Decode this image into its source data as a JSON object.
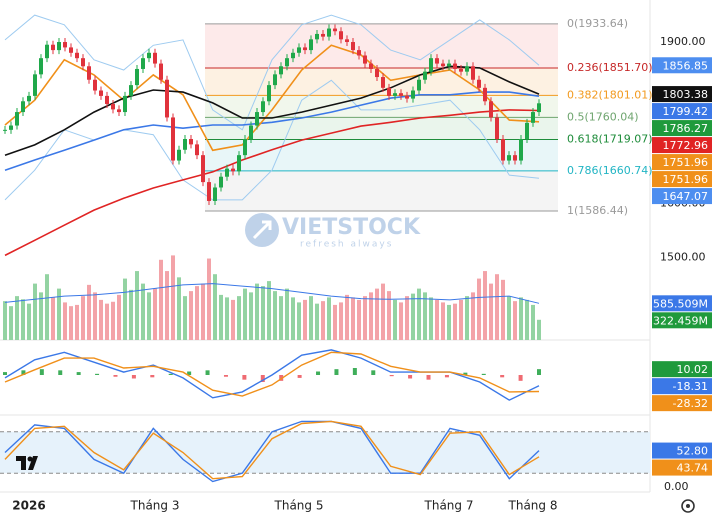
{
  "chart_data": {
    "type": "candlestick",
    "categories": [
      null,
      null,
      null,
      null,
      "2026",
      null,
      null,
      null,
      null,
      null,
      null,
      null,
      null,
      null,
      null,
      null,
      null,
      null,
      null,
      null,
      null,
      null,
      null,
      null,
      null,
      "Tháng 3",
      null,
      null,
      null,
      null,
      null,
      null,
      null,
      null,
      null,
      null,
      null,
      null,
      null,
      null,
      null,
      null,
      null,
      null,
      null,
      null,
      null,
      null,
      null,
      "Tháng 5",
      null,
      null,
      null,
      null,
      null,
      null,
      null,
      null,
      null,
      null,
      null,
      null,
      null,
      null,
      null,
      null,
      null,
      null,
      null,
      null,
      null,
      null,
      null,
      null,
      "Tháng 7",
      null,
      null,
      null,
      null,
      null,
      null,
      null,
      null,
      null,
      null,
      null,
      null,
      null,
      "Tháng 8",
      null
    ],
    "close": [
      1737,
      1745,
      1770,
      1790,
      1800,
      1840,
      1870,
      1895,
      1885,
      1900,
      1890,
      1880,
      1870,
      1855,
      1830,
      1810,
      1800,
      1785,
      1775,
      1770,
      1800,
      1820,
      1850,
      1870,
      1880,
      1860,
      1830,
      1760,
      1680,
      1700,
      1720,
      1710,
      1690,
      1640,
      1605,
      1630,
      1650,
      1665,
      1660,
      1690,
      1720,
      1745,
      1770,
      1790,
      1820,
      1840,
      1855,
      1870,
      1880,
      1890,
      1885,
      1905,
      1915,
      1910,
      1925,
      1920,
      1905,
      1900,
      1885,
      1875,
      1860,
      1850,
      1835,
      1815,
      1800,
      1805,
      1800,
      1795,
      1810,
      1830,
      1845,
      1870,
      1860,
      1855,
      1860,
      1850,
      1845,
      1855,
      1830,
      1815,
      1790,
      1760,
      1720,
      1680,
      1690,
      1680,
      1720,
      1750,
      1770,
      1786.27
    ],
    "up_color": "#1fa84a",
    "down_color": "#e0323c",
    "ylim": [
      1449,
      1978
    ],
    "yticks": [
      {
        "value": 1500,
        "label": "1500.00"
      },
      {
        "value": 1600,
        "label": "1600.00"
      },
      {
        "value": 1900,
        "label": "1900.00"
      }
    ],
    "overlays": [
      {
        "color": "#9ecbf0",
        "values": [
          1904,
          1950,
          1932,
          1867,
          1848,
          1894,
          1904,
          1774,
          1737,
          1867,
          1932,
          1950,
          1932,
          1885,
          1867,
          1904,
          1941,
          1904,
          1856.85
        ]
      },
      {
        "color": "#9ecbf0",
        "values": [
          1607,
          1662,
          1737,
          1718,
          1737,
          1728,
          1644,
          1607,
          1607,
          1662,
          1792,
          1829,
          1774,
          1774,
          1783,
          1792,
          1737,
          1653,
          1647.07
        ]
      },
      {
        "color": "#e02424",
        "values": [
          1504,
          1532,
          1560,
          1588,
          1610,
          1629,
          1644,
          1659,
          1681,
          1700,
          1718,
          1731,
          1744,
          1751,
          1759,
          1764,
          1770,
          1774,
          1772.96
        ]
      },
      {
        "color": "#3b78e7",
        "values": [
          1662,
          1681,
          1699,
          1718,
          1737,
          1746,
          1740,
          1746,
          1746,
          1751,
          1759,
          1770,
          1783,
          1796,
          1802,
          1802,
          1807,
          1807,
          1799.42
        ]
      },
      {
        "color": "#f0901a",
        "values": [
          1746,
          1792,
          1867,
          1839,
          1792,
          1839,
          1802,
          1699,
          1709,
          1774,
          1848,
          1894,
          1876,
          1829,
          1839,
          1848,
          1811,
          1755,
          1751.96
        ]
      },
      {
        "color": "#111111",
        "values": [
          1690,
          1709,
          1737,
          1770,
          1796,
          1811,
          1807,
          1787,
          1759,
          1759,
          1770,
          1783,
          1796,
          1815,
          1839,
          1855,
          1852,
          1826,
          1803.38
        ]
      }
    ],
    "fibonacci": [
      {
        "value": 1933.64,
        "label": "0(1933.64)",
        "color": "#9a9a9a",
        "fill": "#fdeaea"
      },
      {
        "value": 1851.7,
        "label": "0.236(1851.70)",
        "color": "#c62828",
        "fill": "#fdf1e2"
      },
      {
        "value": 1801.01,
        "label": "0.382(1801.01)",
        "color": "#f29a1f",
        "fill": "#f1f7ec"
      },
      {
        "value": 1760.04,
        "label": "0.5(1760.04)",
        "color": "#6fa56f",
        "fill": "#eaf5ec"
      },
      {
        "value": 1719.07,
        "label": "0.618(1719.07)",
        "color": "#1e8c3a",
        "fill": "#e8f6f8"
      },
      {
        "value": 1660.74,
        "label": "0.786(1660.74)",
        "color": "#22b5c4",
        "fill": "#f4f4f4"
      },
      {
        "value": 1586.44,
        "label": "1(1586.44)",
        "color": "#9a9a9a",
        "fill": "#ffffff"
      }
    ],
    "price_tags": [
      {
        "value": 1856.85,
        "color": "#4d8ef0"
      },
      {
        "value": 1803.38,
        "color": "#111111"
      },
      {
        "value": 1799.42,
        "color": "#3b78e7"
      },
      {
        "value": 1786.27,
        "color": "#1f9a3c"
      },
      {
        "value": 1772.96,
        "color": "#e02424"
      },
      {
        "value": 1751.96,
        "color": "#f0901a"
      },
      {
        "value": 1751.96,
        "color": "#f0901a"
      },
      {
        "value": 1647.07,
        "color": "#4d8ef0"
      }
    ],
    "volume": {
      "values": [
        620,
        540,
        700,
        650,
        580,
        900,
        760,
        1050,
        680,
        820,
        600,
        540,
        560,
        700,
        880,
        760,
        640,
        580,
        610,
        720,
        980,
        800,
        1100,
        900,
        760,
        820,
        1280,
        1100,
        1350,
        1000,
        700,
        780,
        860,
        900,
        1300,
        1050,
        720,
        680,
        640,
        700,
        820,
        760,
        900,
        860,
        940,
        780,
        700,
        820,
        680,
        600,
        640,
        700,
        580,
        620,
        680,
        560,
        600,
        720,
        680,
        640,
        700,
        760,
        820,
        900,
        780,
        640,
        600,
        700,
        740,
        820,
        760,
        680,
        640,
        600,
        560,
        580,
        640,
        700,
        760,
        980,
        1100,
        900,
        1050,
        960,
        700,
        620,
        680,
        640,
        560,
        322.459
      ],
      "up_color": "#93d3a2",
      "down_color": "#f3a3a8",
      "ylim": [
        0,
        1500
      ],
      "ma": {
        "color": "#3b78e7",
        "values": [
          600,
          650,
          700,
          720,
          760,
          820,
          880,
          900,
          860,
          820,
          760,
          700,
          660,
          650,
          660,
          640,
          680,
          700,
          585.509
        ]
      },
      "tags": [
        {
          "value": 585.509,
          "label": "585.509M",
          "color": "#3b78e7"
        },
        {
          "value": 322.459,
          "label": "322.459M",
          "color": "#1f9a3c"
        }
      ]
    },
    "macd": {
      "ylim": [
        -60,
        60
      ],
      "macd": {
        "color": "#3b78e7",
        "values": [
          -5,
          26,
          39,
          22,
          5,
          17,
          -5,
          -39,
          -29,
          0,
          34,
          43,
          29,
          5,
          5,
          5,
          -12,
          -43,
          -18.31
        ]
      },
      "signal": {
        "color": "#f0901a",
        "values": [
          -12,
          9,
          29,
          29,
          12,
          15,
          5,
          -26,
          -36,
          -17,
          17,
          39,
          36,
          15,
          5,
          5,
          -5,
          -29,
          -28.32
        ]
      },
      "histogram": [
        5,
        8,
        10,
        8,
        5,
        2,
        -3,
        -6,
        -4,
        2,
        6,
        8,
        -3,
        -8,
        -12,
        -10,
        -5,
        6,
        10,
        12,
        8,
        -2,
        -6,
        -8,
        -4,
        4,
        2,
        -4,
        -10,
        10.02
      ],
      "up_color": "#3fae5a",
      "down_color": "#ef6b72",
      "tags": [
        {
          "value": 10.02,
          "color": "#1f9a3c"
        },
        {
          "value": -18.31,
          "color": "#3b78e7"
        },
        {
          "value": -28.32,
          "color": "#f0901a"
        }
      ]
    },
    "stochastic": {
      "ylim": [
        0,
        100
      ],
      "yticks": [
        {
          "value": 0,
          "label": "0.00"
        }
      ],
      "levels": [
        20,
        80
      ],
      "k": {
        "color": "#3b78e7",
        "values": [
          50,
          90,
          85,
          40,
          20,
          85,
          40,
          8,
          20,
          80,
          95,
          95,
          85,
          20,
          20,
          85,
          75,
          12,
          52.8
        ]
      },
      "d": {
        "color": "#f0901a",
        "values": [
          40,
          85,
          88,
          50,
          25,
          78,
          50,
          12,
          15,
          70,
          92,
          95,
          88,
          30,
          18,
          78,
          80,
          18,
          43.74
        ]
      },
      "tags": [
        {
          "value": 52.8,
          "label": "52.80",
          "color": "#3b78e7"
        },
        {
          "value": 43.74,
          "color": "#f0901a"
        }
      ]
    },
    "watermark": "VIETSTOCK",
    "watermark_sub": "refresh always"
  }
}
